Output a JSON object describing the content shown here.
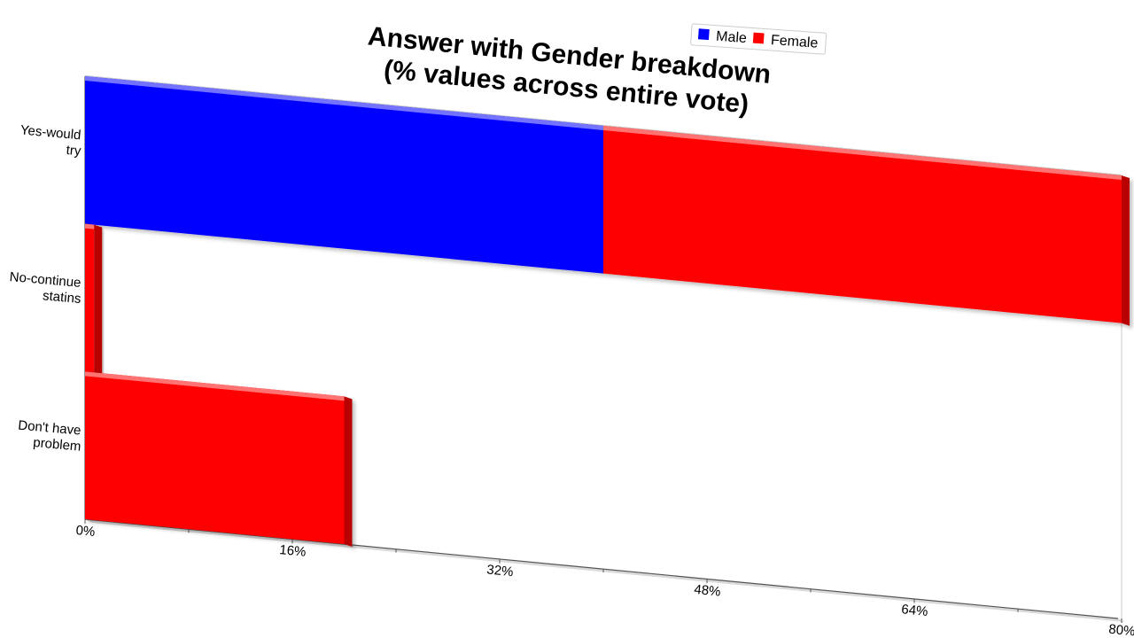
{
  "chart_data": {
    "type": "bar",
    "orientation": "horizontal",
    "stacked": true,
    "title_lines": [
      "Answer with Gender breakdown",
      "(% values across entire vote)"
    ],
    "categories": [
      "Yes-would try",
      "No-continue statins",
      "Don't have problem"
    ],
    "category_label_lines": [
      [
        "Yes-would",
        "try"
      ],
      [
        "No-continue",
        "statins"
      ],
      [
        "Don't have",
        "problem"
      ]
    ],
    "series": [
      {
        "name": "Male",
        "color": "#0000ff",
        "values": [
          40,
          0,
          0
        ]
      },
      {
        "name": "Female",
        "color": "#ff0000",
        "values": [
          40,
          0.7,
          20
        ]
      }
    ],
    "xlim": [
      0,
      80
    ],
    "x_ticks": [
      0,
      16,
      32,
      48,
      64,
      80
    ],
    "x_tick_labels": [
      "0%",
      "16%",
      "32%",
      "48%",
      "64%",
      "80%"
    ],
    "legend": {
      "position": "top-right",
      "entries": [
        "Male",
        "Female"
      ]
    },
    "grid": false,
    "xlabel": "",
    "ylabel": ""
  }
}
